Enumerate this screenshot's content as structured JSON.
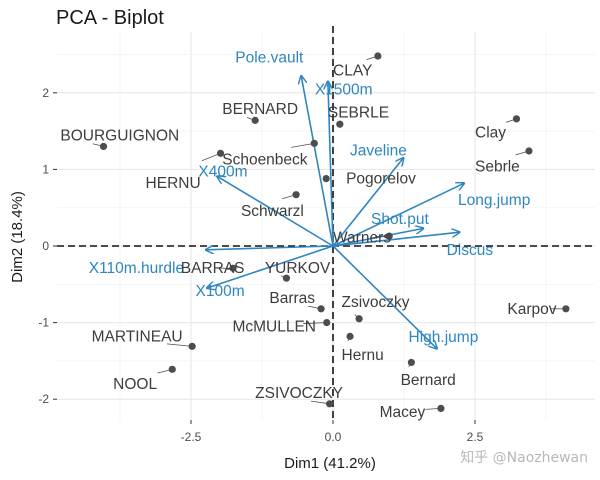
{
  "chart_data": {
    "type": "scatter",
    "subtype": "pca-biplot",
    "title": "PCA - Biplot",
    "xlabel": "Dim1 (41.2%)",
    "ylabel": "Dim2 (18.4%)",
    "xlim": [
      -4.5,
      4.5
    ],
    "ylim": [
      -2.3,
      2.6
    ],
    "xticks": [
      -2.5,
      0.0,
      2.5
    ],
    "xtick_labels": [
      "-2.5",
      "0.0",
      "2.5"
    ],
    "yticks": [
      -2,
      -1,
      0,
      1,
      2
    ],
    "ytick_labels": [
      "-2",
      "-1",
      "0",
      "1",
      "2"
    ],
    "grid": true,
    "reference_lines": {
      "x": 0,
      "y": 0,
      "style": "dashed"
    },
    "colors": {
      "variables": "#2e86c1",
      "individuals": "#4d4d4d"
    },
    "individuals": [
      {
        "name": "CLAY",
        "x": 0.79,
        "y": 2.48,
        "label": [
          0.0,
          2.29
        ]
      },
      {
        "name": "SEBRLE",
        "x": 0.12,
        "y": 1.59,
        "label": [
          -0.09,
          1.74
        ]
      },
      {
        "name": "BERNARD",
        "x": -1.37,
        "y": 1.64,
        "label": [
          -1.95,
          1.79
        ]
      },
      {
        "name": "BOURGUIGNON",
        "x": -4.04,
        "y": 1.3,
        "label": [
          -4.8,
          1.44
        ]
      },
      {
        "name": "Schoenbeck",
        "x": -0.33,
        "y": 1.34,
        "label": [
          -1.95,
          1.13
        ]
      },
      {
        "name": "HERNU",
        "x": -1.98,
        "y": 1.21,
        "label": [
          -3.3,
          0.82
        ]
      },
      {
        "name": "Pogorelov",
        "x": -0.12,
        "y": 0.88,
        "label": [
          0.23,
          0.88
        ]
      },
      {
        "name": "Schwarzl",
        "x": -0.65,
        "y": 0.67,
        "label": [
          -1.62,
          0.46
        ]
      },
      {
        "name": "Clay",
        "x": 3.23,
        "y": 1.66,
        "label": [
          2.5,
          1.48
        ]
      },
      {
        "name": "Sebrle",
        "x": 3.45,
        "y": 1.24,
        "label": [
          2.5,
          1.04
        ]
      },
      {
        "name": "Warners",
        "x": 0.99,
        "y": 0.13,
        "label": [
          0.0,
          0.11
        ]
      },
      {
        "name": "BARRAS",
        "x": -1.76,
        "y": -0.29,
        "label": [
          -2.68,
          -0.29
        ]
      },
      {
        "name": "YURKOV",
        "x": -0.82,
        "y": -0.42,
        "label": [
          -1.2,
          -0.29
        ]
      },
      {
        "name": "Barras",
        "x": -0.21,
        "y": -0.82,
        "label": [
          -1.12,
          -0.68
        ]
      },
      {
        "name": "Zsivoczky",
        "x": 0.46,
        "y": -0.95,
        "label": [
          0.15,
          -0.73
        ]
      },
      {
        "name": "McMULLEN",
        "x": -0.11,
        "y": -1.0,
        "label": [
          -1.77,
          -1.05
        ]
      },
      {
        "name": "Hernu",
        "x": 0.3,
        "y": -1.18,
        "label": [
          0.15,
          -1.42
        ]
      },
      {
        "name": "Karpov",
        "x": 4.1,
        "y": -0.82,
        "label": [
          3.07,
          -0.82
        ]
      },
      {
        "name": "MARTINEAU",
        "x": -2.48,
        "y": -1.31,
        "label": [
          -4.25,
          -1.18
        ]
      },
      {
        "name": "Bernard",
        "x": 1.38,
        "y": -1.52,
        "label": [
          1.19,
          -1.75
        ]
      },
      {
        "name": "NOOL",
        "x": -2.83,
        "y": -1.61,
        "label": [
          -3.87,
          -1.8
        ]
      },
      {
        "name": "ZSIVOCZKY",
        "x": -0.06,
        "y": -2.06,
        "label": [
          -1.37,
          -1.92
        ]
      },
      {
        "name": "Macey",
        "x": 1.9,
        "y": -2.12,
        "label": [
          0.82,
          -2.17
        ]
      }
    ],
    "variables": [
      {
        "name": "Pole.vault",
        "x": -0.56,
        "y": 2.22,
        "label": [
          -1.72,
          2.46
        ]
      },
      {
        "name": "X1500m",
        "x": -0.09,
        "y": 2.15,
        "label": [
          -0.32,
          2.04
        ]
      },
      {
        "name": "Javeline",
        "x": 1.24,
        "y": 1.15,
        "label": [
          0.3,
          1.25
        ]
      },
      {
        "name": "Long.jump",
        "x": 2.31,
        "y": 0.82,
        "label": [
          2.2,
          0.6
        ]
      },
      {
        "name": "Shot.put",
        "x": 1.59,
        "y": 0.23,
        "label": [
          0.67,
          0.35
        ]
      },
      {
        "name": "Discus",
        "x": 2.23,
        "y": 0.18,
        "label": [
          2.0,
          -0.05
        ]
      },
      {
        "name": "X400m",
        "x": -2.04,
        "y": 0.91,
        "label": [
          -2.37,
          0.97
        ]
      },
      {
        "name": "X110m.hurdle",
        "x": -2.24,
        "y": -0.05,
        "label": [
          -4.3,
          -0.29
        ]
      },
      {
        "name": "X100m",
        "x": -2.22,
        "y": -0.55,
        "label": [
          -2.42,
          -0.59
        ]
      },
      {
        "name": "High.jump",
        "x": 1.83,
        "y": -1.34,
        "label": [
          1.33,
          -1.19
        ]
      }
    ]
  },
  "watermark": "知乎 @Naozhewan"
}
